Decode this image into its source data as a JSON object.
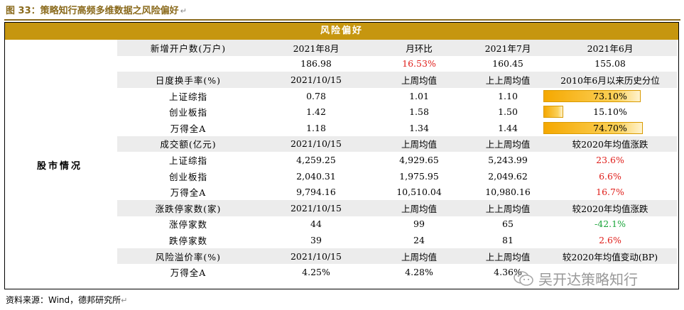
{
  "figure_title": "图 33：策略知行高频多维数据之风险偏好",
  "title_mark": "↵",
  "table_header": "风险偏好",
  "section_label": "股市情况",
  "rows": [
    {
      "type": "hdr",
      "c": [
        "新增开户数(万户)",
        "2021年8月",
        "月环比",
        "2021年7月",
        "2021年6月"
      ]
    },
    {
      "type": "data",
      "c": [
        "",
        "186.98",
        "16.53%",
        "160.45",
        "155.08"
      ],
      "color2": "red"
    },
    {
      "type": "hdr",
      "c": [
        "日度换手率(%)",
        "2021/10/15",
        "上周均值",
        "上上周均值",
        "2010年6月以来历史分位"
      ]
    },
    {
      "type": "bar",
      "c": [
        "上证综指",
        "0.78",
        "1.01",
        "1.10",
        "73.10%"
      ],
      "pct": 73.1
    },
    {
      "type": "bar",
      "c": [
        "创业板指",
        "1.42",
        "1.58",
        "1.50",
        "15.10%"
      ],
      "pct": 15.1
    },
    {
      "type": "bar",
      "c": [
        "万得全A",
        "1.18",
        "1.34",
        "1.44",
        "74.70%"
      ],
      "pct": 74.7
    },
    {
      "type": "hdr",
      "c": [
        "成交额(亿元)",
        "2021/10/15",
        "上周均值",
        "上上周均值",
        "较2020年均值涨跌"
      ]
    },
    {
      "type": "data",
      "c": [
        "上证综指",
        "4,259.25",
        "4,929.65",
        "5,243.99",
        "23.6%"
      ],
      "color4": "red"
    },
    {
      "type": "data",
      "c": [
        "创业板指",
        "2,040.31",
        "1,975.95",
        "2,049.62",
        "6.6%"
      ],
      "color4": "red"
    },
    {
      "type": "data",
      "c": [
        "万得全A",
        "9,794.16",
        "10,510.04",
        "10,980.16",
        "16.7%"
      ],
      "color4": "red"
    },
    {
      "type": "hdr",
      "c": [
        "涨跌停家数(家)",
        "2021/10/15",
        "上周均值",
        "上上周均值",
        "较2020年均值涨跌"
      ]
    },
    {
      "type": "data",
      "c": [
        "涨停家数",
        "44",
        "99",
        "65",
        "-42.1%"
      ],
      "color4": "green"
    },
    {
      "type": "data",
      "c": [
        "跌停家数",
        "39",
        "24",
        "81",
        "2.6%"
      ],
      "color4": "red"
    },
    {
      "type": "hdr",
      "c": [
        "风险溢价率(%)",
        "2021/10/15",
        "上周均值",
        "上上周均值",
        "较2020年均值变动(BP)"
      ]
    },
    {
      "type": "data",
      "c": [
        "万得全A",
        "4.25%",
        "4.28%",
        "4.36%",
        ""
      ]
    }
  ],
  "source": "资料来源：Wind，德邦研究所",
  "source_mark": "↵",
  "watermark": "吴开达策略知行",
  "colors": {
    "accent": "#c6960f",
    "title": "#8a6a1c",
    "red": "#e0201c",
    "green": "#1aa53a",
    "header_row": "#ececec"
  }
}
